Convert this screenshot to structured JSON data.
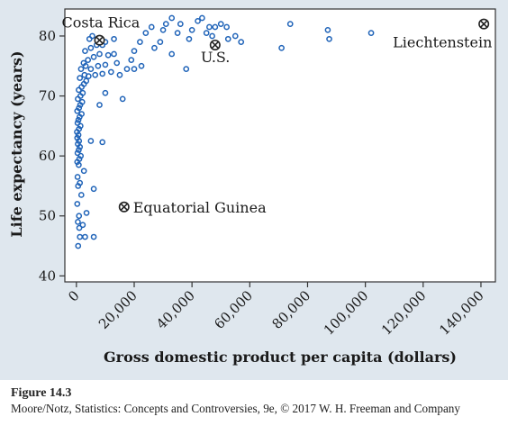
{
  "chart_data": {
    "type": "scatter",
    "xlabel": "Gross domestic product per capita (dollars)",
    "ylabel": "Life expectancy (years)",
    "xlim": [
      -4000,
      145000
    ],
    "ylim": [
      39,
      84.5
    ],
    "xticks": [
      0,
      20000,
      40000,
      60000,
      80000,
      100000,
      120000,
      140000
    ],
    "xtick_labels": [
      "0",
      "20,000",
      "40,000",
      "60,000",
      "80,000",
      "100,000",
      "120,000",
      "140,000"
    ],
    "yticks": [
      40,
      50,
      60,
      70,
      80
    ],
    "ytick_labels": [
      "40",
      "50",
      "60",
      "70",
      "80"
    ],
    "grid": false,
    "marker_color": "#1f63b8",
    "highlight_color": "#222222",
    "points": [
      [
        600,
        45
      ],
      [
        1200,
        46.5
      ],
      [
        3000,
        46.5
      ],
      [
        6000,
        46.5
      ],
      [
        1000,
        48
      ],
      [
        2200,
        48.5
      ],
      [
        500,
        49
      ],
      [
        900,
        50
      ],
      [
        3500,
        50.5
      ],
      [
        300,
        52
      ],
      [
        1700,
        53.5
      ],
      [
        6000,
        54.5
      ],
      [
        600,
        55
      ],
      [
        1200,
        55.5
      ],
      [
        400,
        56.5
      ],
      [
        2600,
        57.5
      ],
      [
        800,
        58.5
      ],
      [
        300,
        59
      ],
      [
        1000,
        59.5
      ],
      [
        1500,
        60
      ],
      [
        400,
        60.5
      ],
      [
        800,
        61
      ],
      [
        1200,
        61.5
      ],
      [
        500,
        62
      ],
      [
        900,
        62.5
      ],
      [
        5000,
        62.5
      ],
      [
        9000,
        62.3
      ],
      [
        300,
        63
      ],
      [
        700,
        63.5
      ],
      [
        200,
        64
      ],
      [
        900,
        64.5
      ],
      [
        1400,
        65
      ],
      [
        400,
        65.5
      ],
      [
        700,
        66
      ],
      [
        1100,
        66.5
      ],
      [
        1800,
        67
      ],
      [
        300,
        67.5
      ],
      [
        900,
        68
      ],
      [
        1300,
        68.5
      ],
      [
        2000,
        69
      ],
      [
        500,
        69.5
      ],
      [
        1400,
        70
      ],
      [
        2200,
        70.5
      ],
      [
        800,
        71
      ],
      [
        1800,
        71.5
      ],
      [
        2600,
        72
      ],
      [
        3400,
        72.5
      ],
      [
        1200,
        73
      ],
      [
        2800,
        73.5
      ],
      [
        4200,
        73.3
      ],
      [
        6500,
        73.5
      ],
      [
        9000,
        73.7
      ],
      [
        12000,
        74
      ],
      [
        1600,
        74.5
      ],
      [
        3200,
        75
      ],
      [
        5000,
        74.5
      ],
      [
        7500,
        75
      ],
      [
        10000,
        75.2
      ],
      [
        14000,
        75.5
      ],
      [
        2500,
        75.5
      ],
      [
        4000,
        76
      ],
      [
        6000,
        76.5
      ],
      [
        8000,
        77
      ],
      [
        11000,
        76.8
      ],
      [
        13000,
        77
      ],
      [
        3000,
        77.5
      ],
      [
        5000,
        78
      ],
      [
        7000,
        78.5
      ],
      [
        9000,
        78.5
      ],
      [
        4500,
        79.5
      ],
      [
        5500,
        80
      ],
      [
        10000,
        79
      ],
      [
        13000,
        79.5
      ],
      [
        15000,
        73.5
      ],
      [
        17500,
        74.5
      ],
      [
        19000,
        76
      ],
      [
        20000,
        77.5
      ],
      [
        22000,
        79
      ],
      [
        24000,
        80.5
      ],
      [
        26000,
        81.5
      ],
      [
        27000,
        78
      ],
      [
        29000,
        79
      ],
      [
        30000,
        81
      ],
      [
        31000,
        82
      ],
      [
        33000,
        83
      ],
      [
        35000,
        80.5
      ],
      [
        36000,
        82
      ],
      [
        38000,
        74.5
      ],
      [
        39000,
        79.5
      ],
      [
        40000,
        81
      ],
      [
        42000,
        82.5
      ],
      [
        43500,
        83
      ],
      [
        45000,
        80.5
      ],
      [
        46000,
        81.5
      ],
      [
        47000,
        80
      ],
      [
        48000,
        81.5
      ],
      [
        50000,
        82
      ],
      [
        52000,
        81.5
      ],
      [
        52500,
        79.5
      ],
      [
        55000,
        80
      ],
      [
        57000,
        79
      ],
      [
        71000,
        78
      ],
      [
        74000,
        82
      ],
      [
        87000,
        81
      ],
      [
        87500,
        79.5
      ],
      [
        102000,
        80.5
      ],
      [
        16000,
        69.5
      ],
      [
        20000,
        74.5
      ],
      [
        22500,
        75
      ],
      [
        33000,
        77
      ],
      [
        10000,
        70.5
      ],
      [
        8000,
        68.5
      ]
    ],
    "highlighted": [
      {
        "label": "Costa Rica",
        "x": 8000,
        "y": 79.3
      },
      {
        "label": "U.S.",
        "x": 48000,
        "y": 78.5
      },
      {
        "label": "Liechtenstein",
        "x": 141000,
        "y": 82
      },
      {
        "label": "Equatorial Guinea",
        "x": 16500,
        "y": 51.5
      }
    ]
  },
  "caption": {
    "figure_label": "Figure 14.3",
    "credit_line": "Moore/Notz, Statistics: Concepts and Controversies, 9e, © 2017 W. H. Freeman and Company"
  }
}
